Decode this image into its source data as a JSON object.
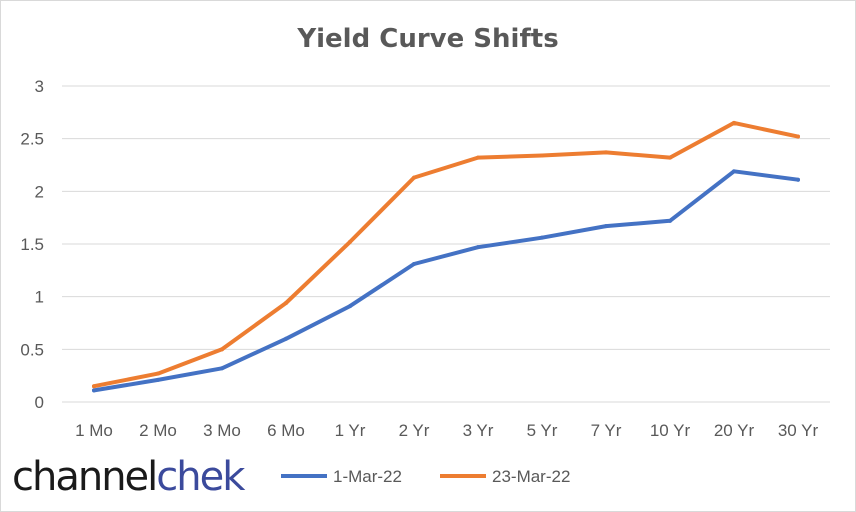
{
  "chart_data": {
    "type": "line",
    "title": "Yield Curve Shifts",
    "categories": [
      "1 Mo",
      "2 Mo",
      "3 Mo",
      "6 Mo",
      "1 Yr",
      "2 Yr",
      "3 Yr",
      "5 Yr",
      "7 Yr",
      "10 Yr",
      "20 Yr",
      "30 Yr"
    ],
    "series": [
      {
        "name": "1-Mar-22",
        "color": "#4472C4",
        "values": [
          0.11,
          0.21,
          0.32,
          0.6,
          0.91,
          1.31,
          1.47,
          1.56,
          1.67,
          1.72,
          2.19,
          2.11
        ]
      },
      {
        "name": "23-Mar-22",
        "color": "#ED7D31",
        "values": [
          0.15,
          0.27,
          0.5,
          0.94,
          1.52,
          2.13,
          2.32,
          2.34,
          2.37,
          2.32,
          2.65,
          2.52
        ]
      }
    ],
    "yticks": [
      "0",
      "0.5",
      "1",
      "1.5",
      "2",
      "2.5",
      "3"
    ],
    "ylim": [
      0,
      3
    ],
    "grid": true,
    "legend_position": "bottom",
    "xlabel": "",
    "ylabel": ""
  },
  "logo": {
    "part1": "channel",
    "part2": "chek",
    "color1": "#1a1a1a",
    "color2": "#3b4a9c"
  }
}
